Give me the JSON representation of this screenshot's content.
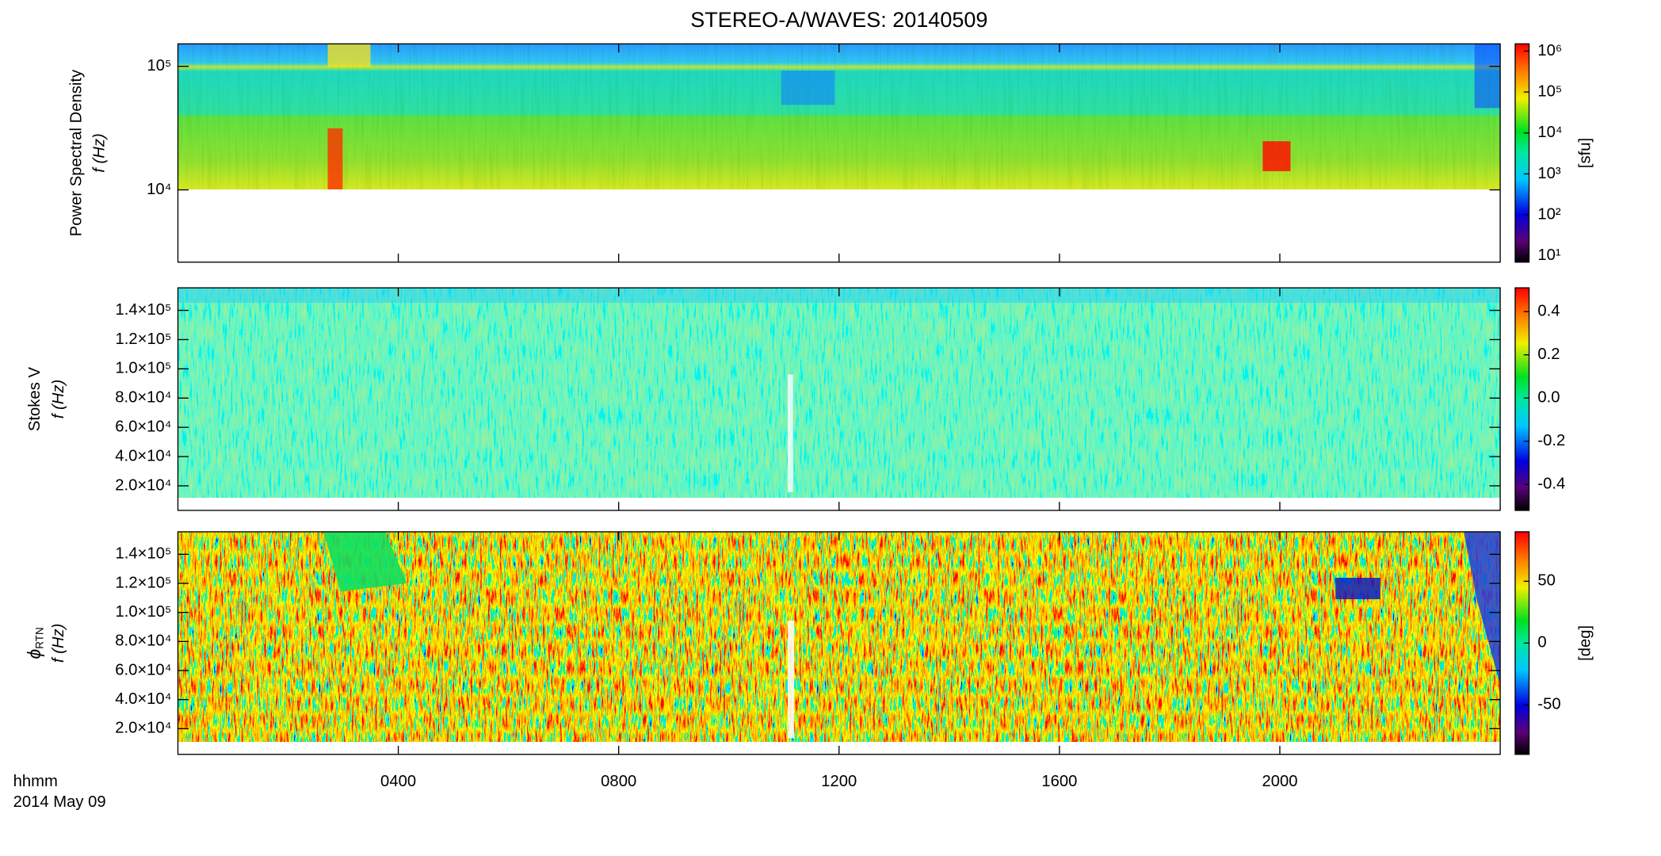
{
  "title": "STEREO-A/WAVES: 20140509",
  "time_axis": {
    "label": "hhmm",
    "date": "2014 May 09",
    "xlim": [
      0,
      2400
    ],
    "xticks": [
      {
        "value": 400,
        "label": "0400"
      },
      {
        "value": 800,
        "label": "0800"
      },
      {
        "value": 1200,
        "label": "1200"
      },
      {
        "value": 1600,
        "label": "1600"
      },
      {
        "value": 2000,
        "label": "2000"
      }
    ]
  },
  "chart_data": [
    {
      "type": "heatmap",
      "ylabel": "Power Spectral Density",
      "ylabel2": "f (Hz)",
      "log_y": true,
      "ylim": [
        2600,
        152000
      ],
      "yticks": [
        {
          "value": 10000,
          "label": "10⁴"
        },
        {
          "value": 100000,
          "label": "10⁵"
        }
      ],
      "colorbar": {
        "label": "[sfu]",
        "log": true,
        "lim": [
          7,
          1500000
        ],
        "ticks": [
          {
            "value": 10,
            "label": "10¹"
          },
          {
            "value": 100,
            "label": "10²"
          },
          {
            "value": 1000,
            "label": "10³"
          },
          {
            "value": 10000,
            "label": "10⁴"
          },
          {
            "value": 100000,
            "label": "10⁵"
          },
          {
            "value": 1000000,
            "label": "10⁶"
          }
        ]
      }
    },
    {
      "type": "heatmap",
      "ylabel": "Stokes V",
      "ylabel2": "f (Hz)",
      "log_y": false,
      "ylim": [
        3200,
        155400
      ],
      "yticks": [
        {
          "value": 20000,
          "label": "2.0×10⁴"
        },
        {
          "value": 40000,
          "label": "4.0×10⁴"
        },
        {
          "value": 60000,
          "label": "6.0×10⁴"
        },
        {
          "value": 80000,
          "label": "8.0×10⁴"
        },
        {
          "value": 100000,
          "label": "1.0×10⁵"
        },
        {
          "value": 120000,
          "label": "1.2×10⁵"
        },
        {
          "value": 140000,
          "label": "1.4×10⁵"
        }
      ],
      "colorbar": {
        "log": false,
        "lim": [
          -0.52,
          0.51
        ],
        "ticks": [
          -0.4,
          -0.2,
          {
            "value": 0,
            "label": "0.0"
          },
          0.2,
          0.4
        ]
      }
    },
    {
      "type": "heatmap",
      "ylabel": "ϕ",
      "ylabel_sub": "RTN",
      "ylabel2": "f (Hz)",
      "log_y": false,
      "ylim": [
        2300,
        155500
      ],
      "yticks": [
        {
          "value": 20000,
          "label": "2.0×10⁴"
        },
        {
          "value": 40000,
          "label": "4.0×10⁴"
        },
        {
          "value": 60000,
          "label": "6.0×10⁴"
        },
        {
          "value": 80000,
          "label": "8.0×10⁴"
        },
        {
          "value": 100000,
          "label": "1.0×10⁵"
        },
        {
          "value": 120000,
          "label": "1.2×10⁵"
        },
        {
          "value": 140000,
          "label": "1.4×10⁵"
        }
      ],
      "colorbar": {
        "label": "[deg]",
        "log": false,
        "lim": [
          -90,
          90
        ],
        "ticks": [
          -50,
          0,
          50
        ]
      }
    }
  ]
}
